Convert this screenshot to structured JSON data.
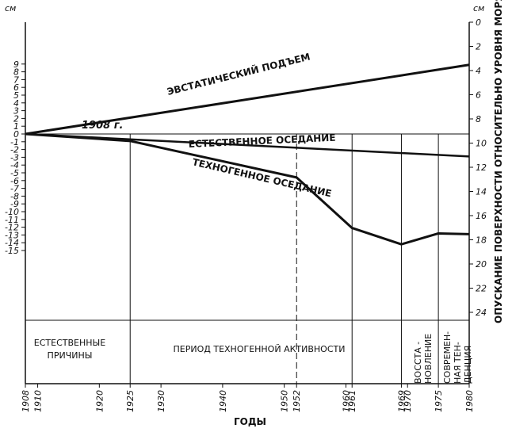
{
  "chart_data": {
    "type": "line",
    "xlabel": "ГОДЫ",
    "ylabel_left_unit": "см",
    "ylabel_left_unit_right": "см",
    "ylabel_right": "ОПУСКАНИЕ ПОВЕРХНОСТИ ОТНОСИТЕЛЬНО УРОВНЯ МОРЯ, СМ",
    "x_ticks": [
      "1908",
      "1910",
      "1920",
      "1925",
      "1930",
      "1940",
      "1950",
      "1952",
      "1960",
      "1961",
      "1969",
      "1970",
      "1975",
      "1980"
    ],
    "y_ticks_left": [
      "9",
      "8",
      "7",
      "6",
      "5",
      "4",
      "3",
      "2",
      "1",
      "0",
      "-1",
      "-2",
      "-3",
      "-4",
      "-5",
      "-6",
      "-7",
      "-8",
      "-9",
      "-10",
      "-11",
      "-12",
      "-13",
      "-14",
      "-15"
    ],
    "y_ticks_right": [
      "0",
      "2",
      "4",
      "6",
      "8",
      "10",
      "12",
      "14",
      "16",
      "18",
      "20",
      "22",
      "24"
    ],
    "ylim_left": [
      -15,
      9
    ],
    "xlim": [
      1908,
      1980
    ],
    "series": [
      {
        "name": "ЭВСТАТИЧЕСКИЙ ПОДЪЕМ",
        "x": [
          1908,
          1980
        ],
        "y": [
          0,
          8.9
        ]
      },
      {
        "name": "ЕСТЕСТВЕННОЕ ОСЕДАНИЕ",
        "x": [
          1908,
          1980
        ],
        "y": [
          0,
          -2.9
        ]
      },
      {
        "name": "ТЕХНОГЕННОЕ ОСЕДАНИЕ",
        "x": [
          1908,
          1925,
          1952,
          1961,
          1969,
          1975,
          1980
        ],
        "y": [
          0,
          -0.9,
          -5.6,
          -12.1,
          -14.2,
          -12.8,
          -12.9
        ]
      }
    ],
    "annotations": {
      "start_label": "1908 г.",
      "periods": [
        {
          "label": "ЕСТЕСТВЕННЫЕ ПРИЧИНЫ",
          "from": 1908,
          "to": 1925
        },
        {
          "label": "ПЕРИОД  ТЕХНОГЕННОЙ АКТИВНОСТИ",
          "from": 1925,
          "to": 1969
        },
        {
          "label": "ВОССТА-НОВЛЕНИЕ",
          "from": 1969,
          "to": 1975
        },
        {
          "label": "СОВРЕМЕН-НАЯ ТЕН-ДЕНЦИЯ",
          "from": 1975,
          "to": 1980
        }
      ]
    }
  }
}
